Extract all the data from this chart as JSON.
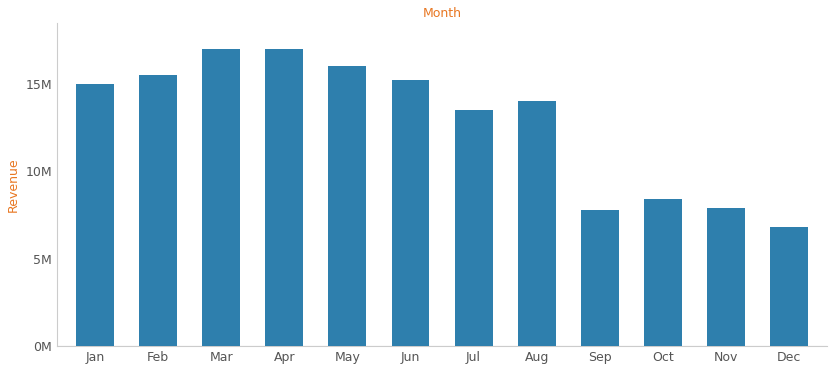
{
  "months": [
    "Jan",
    "Feb",
    "Mar",
    "Apr",
    "May",
    "Jun",
    "Jul",
    "Aug",
    "Sep",
    "Oct",
    "Nov",
    "Dec"
  ],
  "values": [
    15000000,
    15500000,
    17000000,
    17000000,
    16000000,
    15200000,
    13500000,
    14000000,
    7800000,
    8400000,
    7900000,
    6800000
  ],
  "bar_color": "#2e7fad",
  "title": "Month",
  "ylabel": "Revenue",
  "yticks": [
    0,
    5000000,
    10000000,
    15000000
  ],
  "ytick_labels": [
    "0M",
    "5M",
    "10M",
    "15M"
  ],
  "ylim": [
    0,
    18500000
  ],
  "background_color": "#ffffff",
  "plot_bg_color": "#ffffff",
  "title_color": "#e87722",
  "ylabel_color": "#e87722",
  "tick_label_color": "#555555",
  "axis_line_color": "#cccccc"
}
